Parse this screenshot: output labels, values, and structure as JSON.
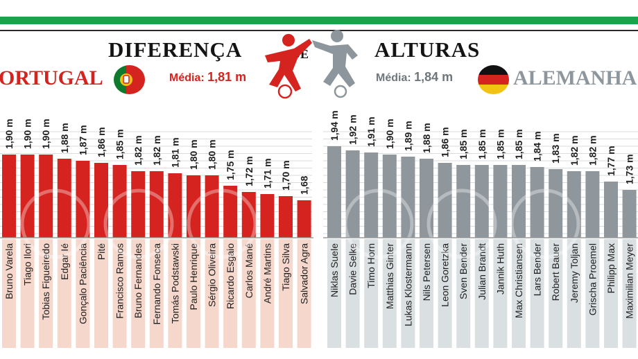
{
  "header": {
    "title_left": "DIFERENÇA",
    "title_mid": "DE",
    "title_right": "ALTURAS"
  },
  "teams": [
    {
      "country": "ORTUGAL",
      "media_label": "Média:",
      "media_value": "1,81 m",
      "color": "#d5231f",
      "flag_icon": "portugal-flag-icon"
    },
    {
      "country": "ALEMANHA",
      "media_label": "Média:",
      "media_value": "1,84 m",
      "color": "#8d969c",
      "flag_icon": "germany-flag-icon"
    }
  ],
  "colors": {
    "portugal_bar": "#d5231f",
    "portugal_label_bg": "#f6d7cc",
    "germany_bar": "#8f979d",
    "germany_label_bg": "#dadfe2",
    "header_green": "#1aa34a"
  },
  "chart_data": [
    {
      "type": "bar",
      "series_name": "Portugal",
      "categories": [
        "Bruno Varela",
        "Tiago Ilori",
        "Tobias Figueiredo",
        "Edgar Ié",
        "Gonçalo Paciência",
        "Pité",
        "Francisco Ramos",
        "Bruno Fernandes",
        "Fernando Fonseca",
        "Tomás Podstawski",
        "Paulo Henrique",
        "Sérgio Oliveira",
        "Ricardo Esgaio",
        "Carlos Mané",
        "André Martins",
        "Tiago Silva",
        "Salvador Agra"
      ],
      "values": [
        1.9,
        1.9,
        1.9,
        1.88,
        1.87,
        1.86,
        1.85,
        1.82,
        1.82,
        1.81,
        1.8,
        1.8,
        1.75,
        1.72,
        1.71,
        1.7,
        1.68
      ],
      "value_labels": [
        "1,90 m",
        "1,90 m",
        "1,90 m",
        "1,88 m",
        "1,87 m",
        "1,86 m",
        "1,85 m",
        "1,82 m",
        "1,82 m",
        "1,81 m",
        "1,80 m",
        "1,80 m",
        "1,75 m",
        "1,72 m",
        "1,71 m",
        "1,70 m",
        "1,68"
      ],
      "ylim": [
        0,
        2.05
      ]
    },
    {
      "type": "bar",
      "series_name": "Alemanha",
      "categories": [
        "Niklas Suele",
        "Davie Selke",
        "Timo Horn",
        "Matthias Ginter",
        "Lukas Klostermann",
        "Nils Petersen",
        "Leon Goretzka",
        "Sven Bender",
        "Julian Brandt",
        "Jannik Huth",
        "Max Christiansen",
        "Lars Bender",
        "Robert Bauer",
        "Jeremy Toljan",
        "Grischa Proemel",
        "Philipp Max",
        "Maximilian Meyer"
      ],
      "values": [
        1.94,
        1.92,
        1.91,
        1.9,
        1.89,
        1.88,
        1.86,
        1.85,
        1.85,
        1.85,
        1.85,
        1.84,
        1.83,
        1.82,
        1.82,
        1.77,
        1.73
      ],
      "value_labels": [
        "1,94 m",
        "1,92 m",
        "1,91 m",
        "1,90 m",
        "1,89 m",
        "1,88 m",
        "1,86 m",
        "1,85 m",
        "1,85 m",
        "1,85 m",
        "1,85 m",
        "1,84 m",
        "1,83 m",
        "1,82 m",
        "1,82 m",
        "1,77 m",
        "1,73 m"
      ],
      "ylim": [
        0,
        2.05
      ]
    }
  ]
}
